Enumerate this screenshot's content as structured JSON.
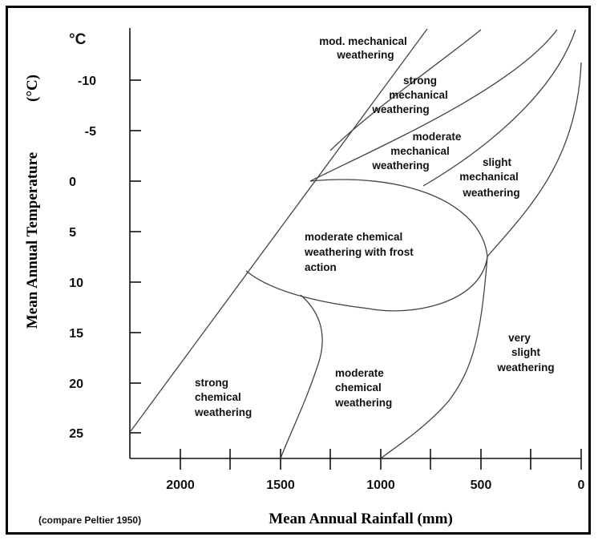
{
  "diagram": {
    "y_axis": {
      "title": "Mean Annual Temperature",
      "unit_title": "(°C)",
      "unit_top": "°C",
      "ticks": [
        "-10",
        "-5",
        "0",
        "5",
        "10",
        "15",
        "20",
        "25"
      ]
    },
    "x_axis": {
      "title": "Mean Annual Rainfall (mm)",
      "ticks": [
        "2000",
        "1500",
        "1000",
        "500",
        "0"
      ]
    },
    "note": "(compare Peltier 1950)",
    "zones": [
      {
        "lines": [
          "mod. mechanical",
          "weathering"
        ]
      },
      {
        "lines": [
          "strong",
          "mechanical",
          "weathering"
        ]
      },
      {
        "lines": [
          "moderate",
          "mechanical",
          "weathering"
        ]
      },
      {
        "lines": [
          "slight",
          "mechanical",
          "weathering"
        ]
      },
      {
        "lines": [
          "moderate chemical",
          "weathering with frost",
          "action"
        ]
      },
      {
        "lines": [
          "strong",
          "chemical",
          "weathering"
        ]
      },
      {
        "lines": [
          "moderate",
          "chemical",
          "weathering"
        ]
      },
      {
        "lines": [
          "very",
          "slight",
          "weathering"
        ]
      }
    ]
  }
}
